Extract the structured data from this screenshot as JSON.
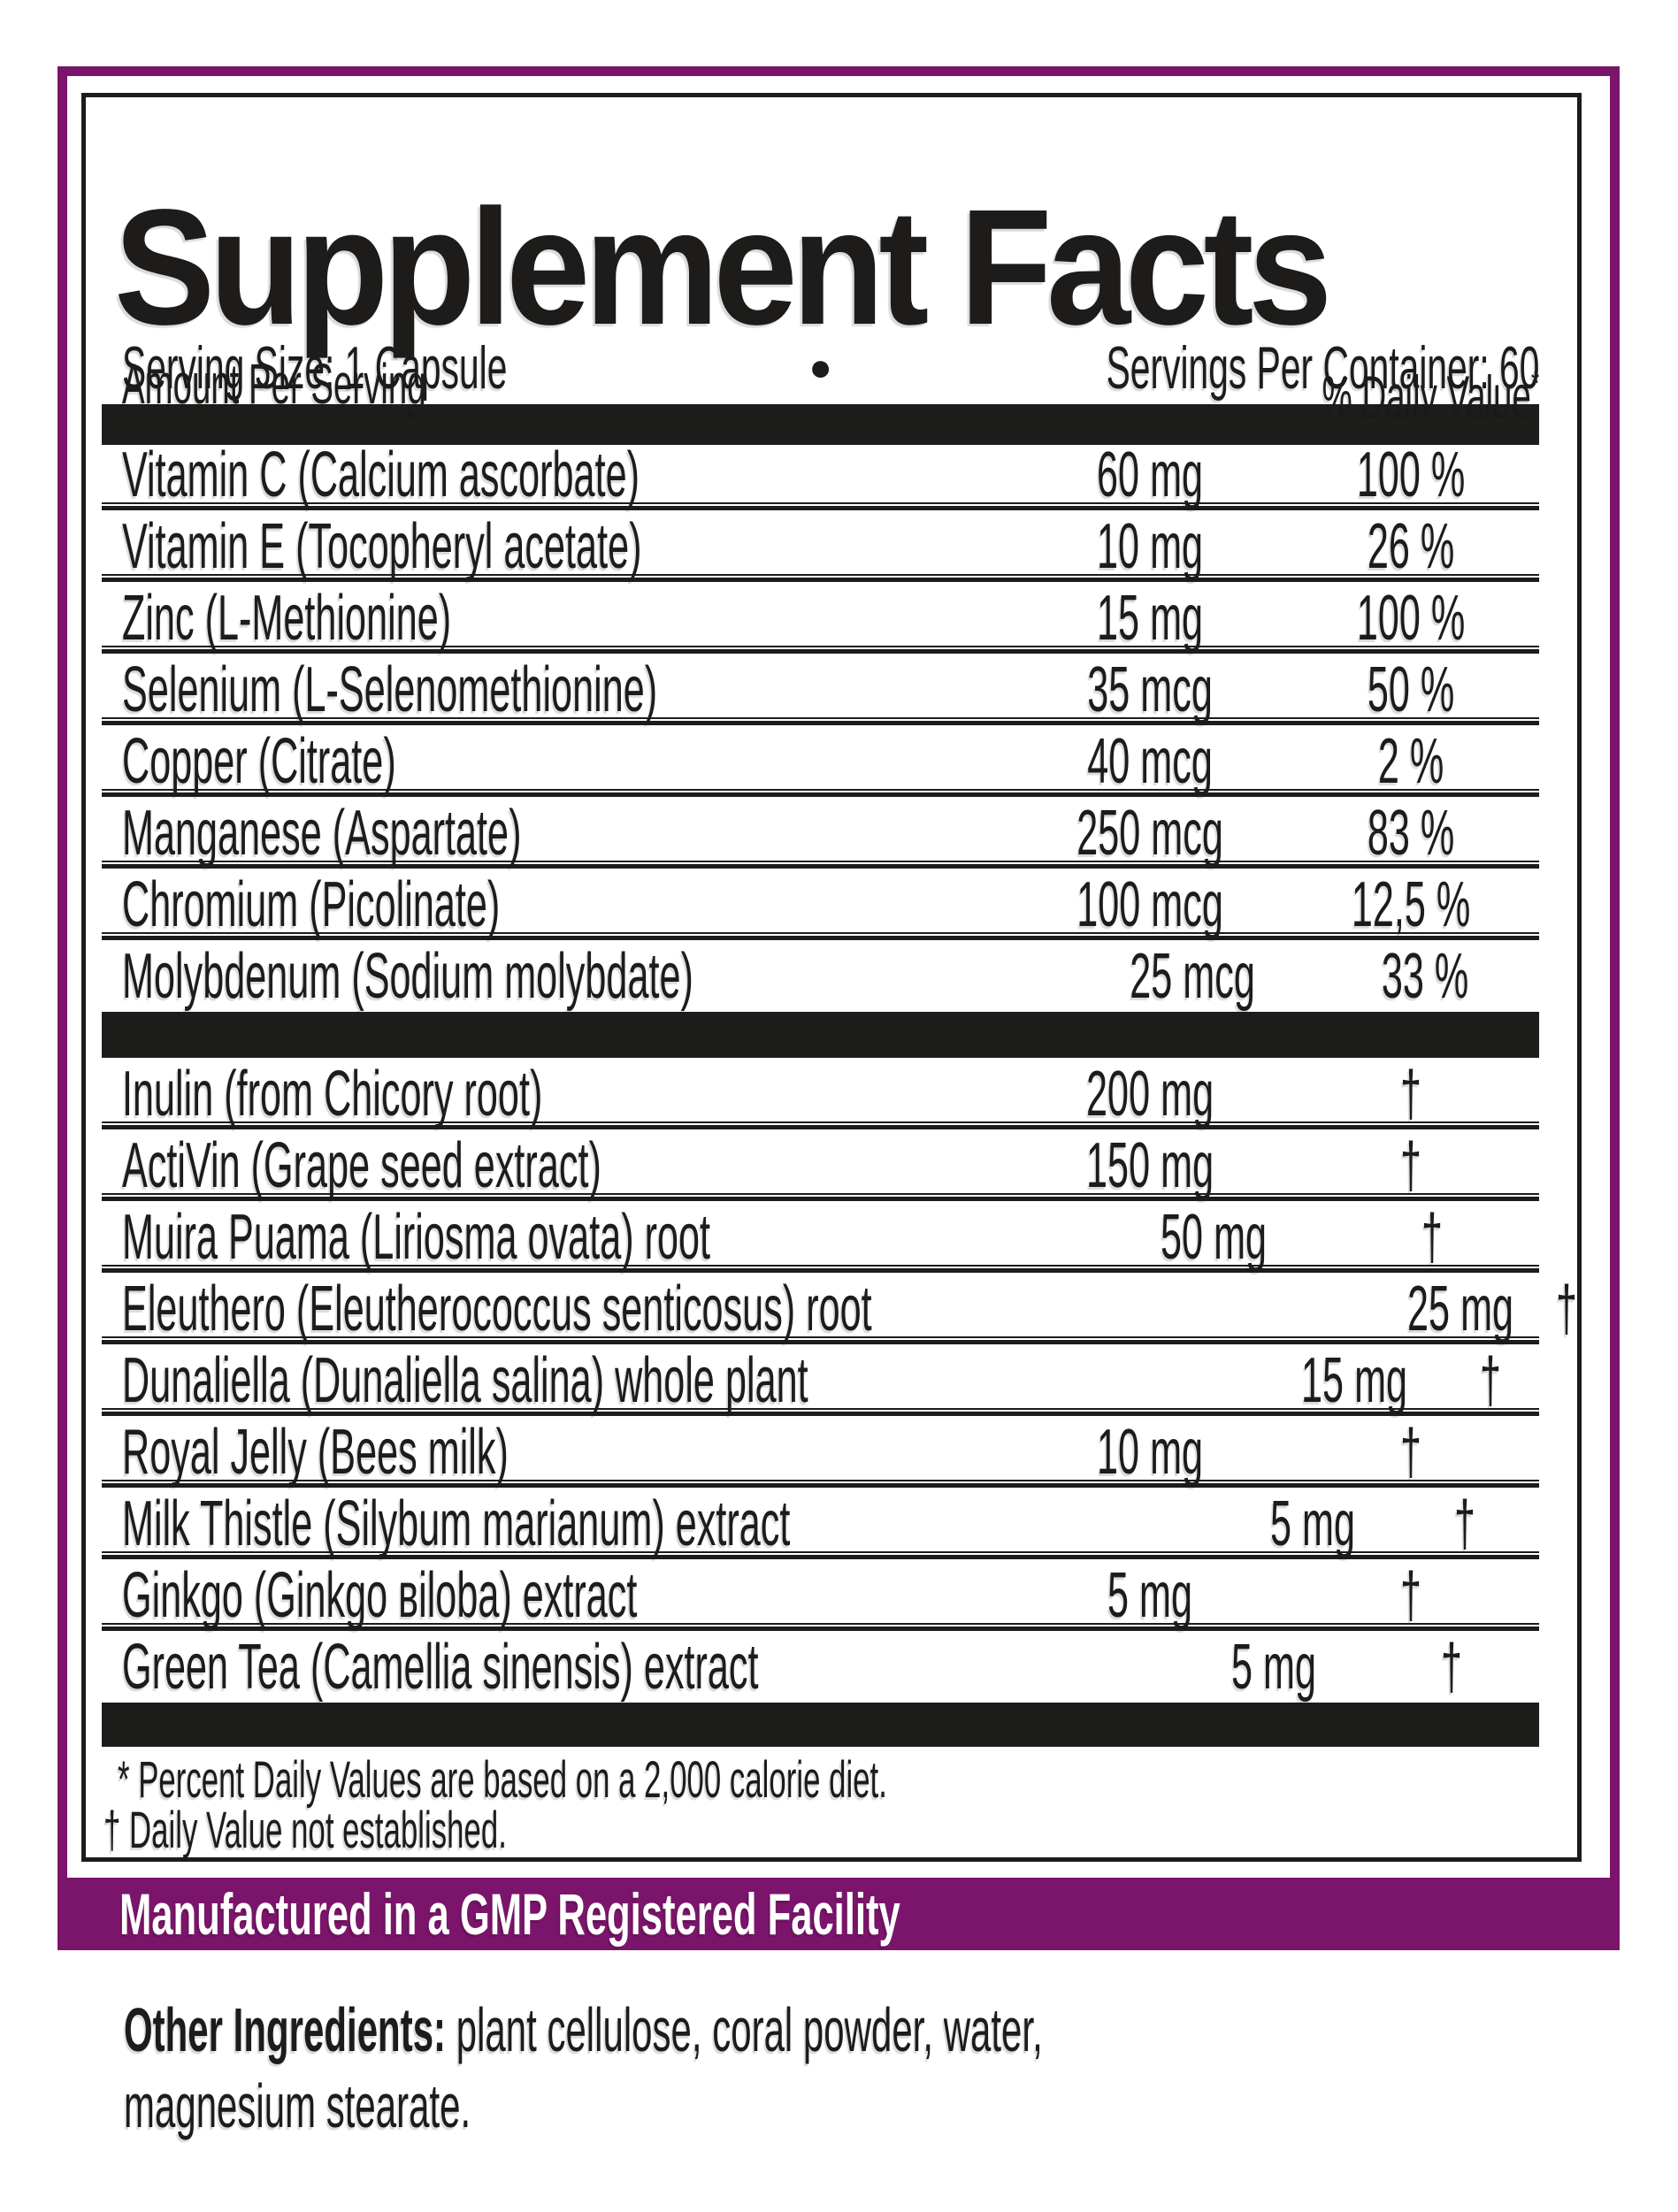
{
  "colors": {
    "ink": "#1d1c1a",
    "purple": "#7b156b"
  },
  "title": "Supplement Facts",
  "serving": {
    "size": "Serving Size: 1 Capsule",
    "separator": "●",
    "per_container": "Servings Per Container: 60"
  },
  "table": {
    "header_left": "Amount Per Serving",
    "header_right": "% Daily Value",
    "header_right_mark": "*",
    "nutrients": [
      {
        "name": "Vitamin C (Calcium ascorbate)",
        "amount": "60 mg",
        "dv": "100 %"
      },
      {
        "name": "Vitamin E (Tocopheryl acetate)",
        "amount": "10 mg",
        "dv": "26 %"
      },
      {
        "name": "Zinc (L-Methionine)",
        "amount": "15 mg",
        "dv": "100 %"
      },
      {
        "name": "Selenium (L-Selenomethionine)",
        "amount": "35 mcg",
        "dv": "50 %"
      },
      {
        "name": "Copper (Citrate)",
        "amount": "40 mcg",
        "dv": "2 %"
      },
      {
        "name": "Manganese (Aspartate)",
        "amount": "250 mcg",
        "dv": "83 %"
      },
      {
        "name": "Chromium (Picolinate)",
        "amount": "100 mcg",
        "dv": "12,5 %"
      },
      {
        "name": "Molybdenum (Sodium molybdate)",
        "amount": "25 mcg",
        "dv": "33 %"
      }
    ],
    "botanicals": [
      {
        "name": "Inulin (from Chicory root)",
        "amount": "200 mg",
        "dv": "†"
      },
      {
        "name": "ActiVin (Grape seed extract)",
        "amount": "150 mg",
        "dv": "†"
      },
      {
        "name": "Muira Puama (Liriosma ovata) root",
        "amount": "50 mg",
        "dv": "†"
      },
      {
        "name": "Eleuthero (Eleutherococcus senticosus) root",
        "amount": "25 mg",
        "dv": "†"
      },
      {
        "name": "Dunaliella (Dunaliella salina) whole plant",
        "amount": "15 mg",
        "dv": "†"
      },
      {
        "name": "Royal Jelly (Bees milk)",
        "amount": "10 mg",
        "dv": "†"
      },
      {
        "name": "Milk Thistle (Silybum marianum) extract",
        "amount": "5 mg",
        "dv": "†"
      },
      {
        "name": "Ginkgo (Ginkgo вiloba) extract",
        "amount": "5 mg",
        "dv": "†"
      },
      {
        "name": "Green Tea (Camellia sinensis) extract",
        "amount": "5 mg",
        "dv": "†"
      }
    ]
  },
  "footnotes": {
    "line1": "* Percent Daily Values are based on a 2,000 calorie diet.",
    "line2": "† Daily Value not established."
  },
  "gmp_banner": "Manufactured in a GMP Registered Facility",
  "other_ingredients": {
    "label": "Other Ingredients:",
    "line1_rest": " plant cellulose, coral powder, water,",
    "line2": "magnesium stearate."
  }
}
